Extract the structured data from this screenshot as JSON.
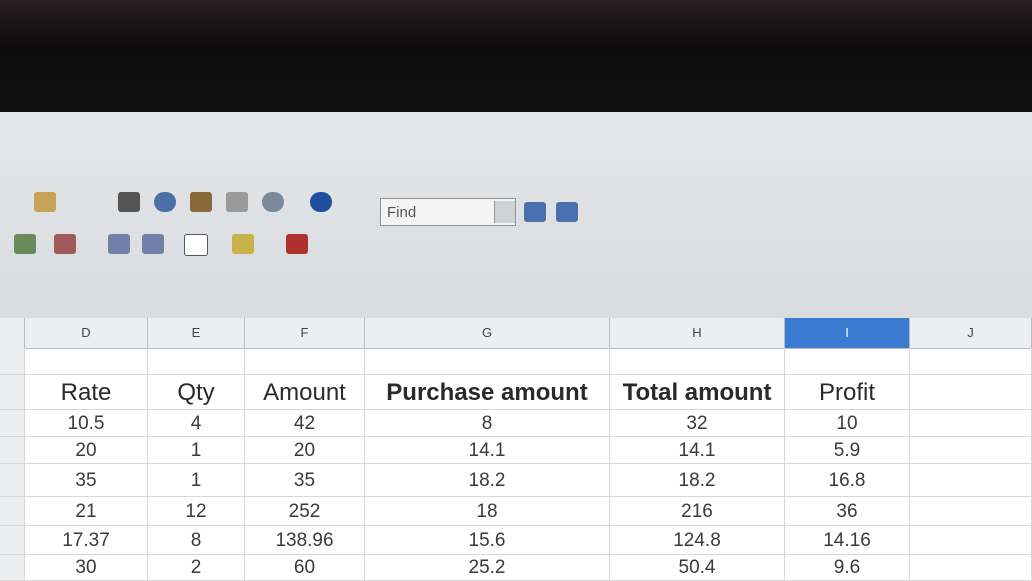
{
  "toolbar": {
    "find_placeholder": "Find"
  },
  "columns": [
    "D",
    "E",
    "F",
    "G",
    "H",
    "I",
    "J"
  ],
  "table": {
    "header": [
      "Rate",
      "Qty",
      "Amount",
      "Purchase amount",
      "Total amount",
      "Profit"
    ],
    "rows": [
      [
        10.5,
        4,
        42,
        8,
        32,
        10
      ],
      [
        20,
        1,
        20,
        14.1,
        14.1,
        5.9
      ],
      [
        35,
        1,
        35,
        18.2,
        18.2,
        16.8
      ],
      [
        21,
        12,
        252,
        18,
        216,
        36
      ],
      [
        17.37,
        8,
        138.96,
        15.6,
        124.8,
        14.16
      ],
      [
        30,
        2,
        60,
        25.2,
        50.4,
        9.6
      ]
    ]
  }
}
